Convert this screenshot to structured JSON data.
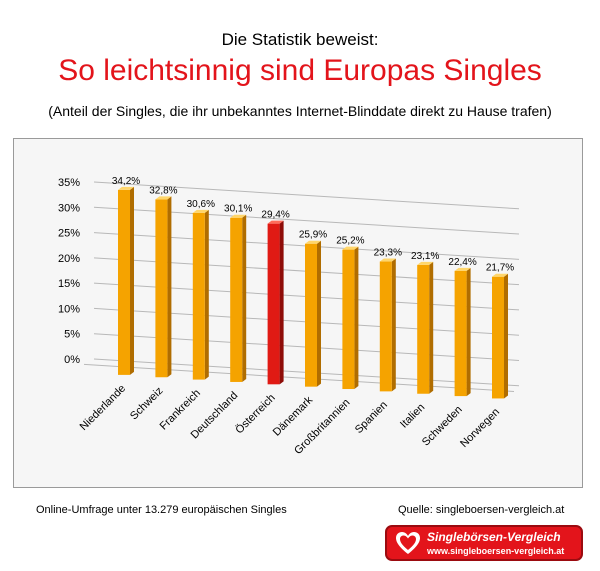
{
  "header": {
    "pre_title": "Die Statistik beweist:",
    "title": "So leichtsinnig sind Europas Singles",
    "subtitle": "(Anteil der Singles, die ihr unbekanntes Internet-Blinddate direkt zu Hause trafen)"
  },
  "chart_data": {
    "type": "bar",
    "title": "",
    "xlabel": "",
    "ylabel": "",
    "ylim": [
      0,
      35
    ],
    "yticks": [
      "0%",
      "5%",
      "10%",
      "15%",
      "20%",
      "25%",
      "30%",
      "35%"
    ],
    "grid": true,
    "categories": [
      "Niederlande",
      "Schweiz",
      "Frankreich",
      "Deutschland",
      "Österreich",
      "Dänemark",
      "Großbritannien",
      "Spanien",
      "Italien",
      "Schweden",
      "Norwegen"
    ],
    "values": [
      34.2,
      32.8,
      30.6,
      30.1,
      29.4,
      25.9,
      25.2,
      23.3,
      23.1,
      22.4,
      21.7
    ],
    "value_labels": [
      "34,2%",
      "32,8%",
      "30,6%",
      "30,1%",
      "29,4%",
      "25,9%",
      "25,2%",
      "23,3%",
      "23,1%",
      "22,4%",
      "21,7%"
    ],
    "colors": {
      "default": "#f5a300",
      "highlight": "#e01a14"
    },
    "highlight_category": "Österreich"
  },
  "footer": {
    "note": "Online-Umfrage unter 13.279 europäischen Singles",
    "source": "Quelle: singleboersen-vergleich.at"
  },
  "logo": {
    "name": "Singlebörsen-Vergleich",
    "url": "www.singleboersen-vergleich.at",
    "icon": "heart-icon"
  }
}
